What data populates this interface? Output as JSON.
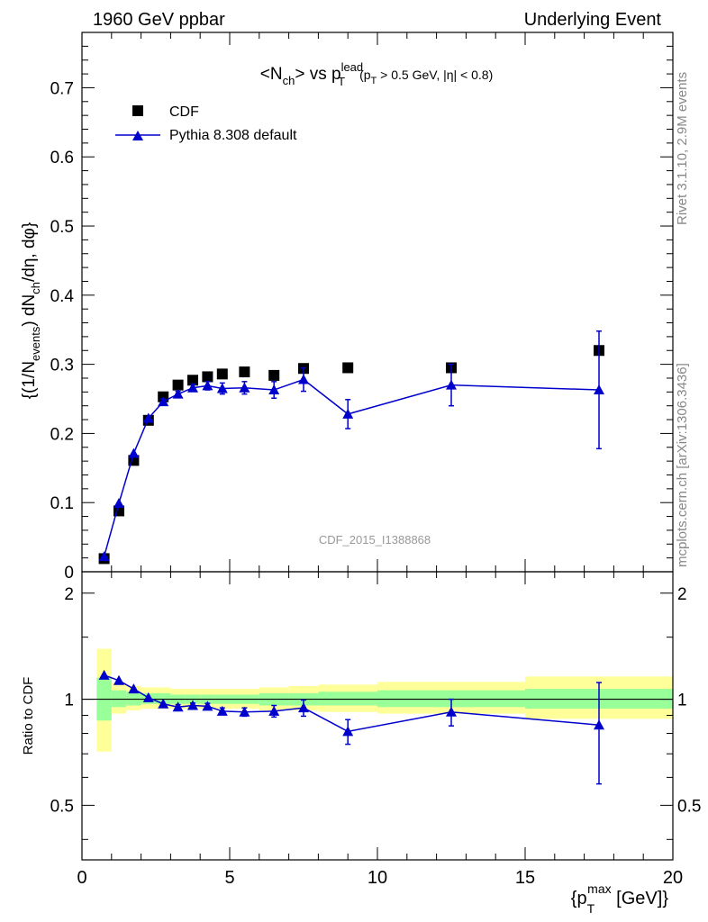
{
  "header": {
    "left": "1960 GeV ppbar",
    "right": "Underlying Event"
  },
  "side_labels": {
    "rivet": "Rivet 3.1.10,  2.9M events",
    "source": "mcplots.cern.ch [arXiv:1306.3436]"
  },
  "watermark": "CDF_2015_I1388868",
  "colors": {
    "data": "#000000",
    "mc": "#0000cc",
    "band_inner": "#99ff99",
    "band_outer": "#ffff99"
  },
  "chart_data": [
    {
      "type": "scatter",
      "title_parts": {
        "main": "<N",
        "main_sub": "ch",
        "mid": "> vs p",
        "mid_sup": "lead",
        "mid_sub": "T",
        "cond_a": "(p",
        "cond_sub": "T",
        "cond_b": " > 0.5 GeV, |η| < 0.8)"
      },
      "ylabel_parts": {
        "a": "{(1/N",
        "sub1": "events",
        "b": ") dN",
        "sub2": "ch",
        "c": "/dη, dφ}"
      },
      "xlim": [
        0,
        20
      ],
      "ylim": [
        0,
        0.78
      ],
      "yticks": [
        0,
        0.1,
        0.2,
        0.3,
        0.4,
        0.5,
        0.6,
        0.7
      ],
      "ytick_labels": [
        "0",
        "0.1",
        "0.2",
        "0.3",
        "0.4",
        "0.5",
        "0.6",
        "0.7"
      ],
      "legend_position": "top-left",
      "series": [
        {
          "name": "CDF",
          "marker": "square",
          "x": [
            0.75,
            1.25,
            1.75,
            2.25,
            2.75,
            3.25,
            3.75,
            4.25,
            4.75,
            5.5,
            6.5,
            7.5,
            9.0,
            12.5,
            17.5
          ],
          "y": [
            0.019,
            0.088,
            0.161,
            0.219,
            0.253,
            0.27,
            0.277,
            0.282,
            0.286,
            0.289,
            0.284,
            0.294,
            0.295,
            0.295,
            0.32
          ]
        },
        {
          "name": "Pythia 8.308 default",
          "marker": "triangle",
          "x": [
            0.75,
            1.25,
            1.75,
            2.25,
            2.75,
            3.25,
            3.75,
            4.25,
            4.75,
            5.5,
            6.5,
            7.5,
            9.0,
            12.5,
            17.5
          ],
          "y": [
            0.022,
            0.099,
            0.171,
            0.222,
            0.246,
            0.257,
            0.266,
            0.269,
            0.265,
            0.266,
            0.263,
            0.278,
            0.228,
            0.27,
            0.263
          ],
          "err": [
            0.001,
            0.002,
            0.003,
            0.003,
            0.004,
            0.004,
            0.005,
            0.006,
            0.008,
            0.009,
            0.012,
            0.017,
            0.021,
            0.03,
            0.085
          ]
        }
      ]
    },
    {
      "type": "scatter",
      "ylabel": "Ratio to CDF",
      "xlabel_parts": {
        "a": "{p",
        "sub": "T",
        "sup": "max",
        "b": " [GeV]}"
      },
      "xlim": [
        0,
        20
      ],
      "xticks": [
        0,
        5,
        10,
        15,
        20
      ],
      "xtick_labels": [
        "0",
        "5",
        "10",
        "15",
        "20"
      ],
      "ylim": [
        0.35,
        2.3
      ],
      "yticks": [
        0.5,
        1,
        2
      ],
      "ytick_labels": [
        "0.5",
        "1",
        "2"
      ],
      "log_scale_y": true,
      "bands": {
        "edges": [
          0.5,
          1.0,
          1.5,
          2.0,
          2.5,
          3.0,
          3.5,
          4.0,
          4.5,
          5.0,
          6.0,
          7.0,
          8.0,
          10.0,
          15.0,
          20.0
        ],
        "inner_lo": [
          0.87,
          0.95,
          0.96,
          0.97,
          0.97,
          0.97,
          0.97,
          0.97,
          0.97,
          0.97,
          0.96,
          0.96,
          0.96,
          0.95,
          0.94
        ],
        "inner_hi": [
          1.15,
          1.06,
          1.05,
          1.04,
          1.04,
          1.03,
          1.03,
          1.03,
          1.03,
          1.03,
          1.04,
          1.04,
          1.05,
          1.06,
          1.07
        ],
        "outer_lo": [
          0.71,
          0.91,
          0.93,
          0.94,
          0.94,
          0.94,
          0.94,
          0.94,
          0.94,
          0.94,
          0.93,
          0.93,
          0.92,
          0.91,
          0.88
        ],
        "outer_hi": [
          1.39,
          1.11,
          1.09,
          1.08,
          1.08,
          1.07,
          1.07,
          1.07,
          1.07,
          1.07,
          1.08,
          1.09,
          1.1,
          1.12,
          1.16
        ]
      },
      "series": [
        {
          "name": "Pythia 8.308 default",
          "x": [
            0.75,
            1.25,
            1.75,
            2.25,
            2.75,
            3.25,
            3.75,
            4.25,
            4.75,
            5.5,
            6.5,
            7.5,
            9.0,
            12.5,
            17.5
          ],
          "y": [
            1.17,
            1.13,
            1.07,
            1.01,
            0.97,
            0.95,
            0.96,
            0.955,
            0.925,
            0.92,
            0.925,
            0.945,
            0.81,
            0.92,
            0.845
          ],
          "err": [
            0.005,
            0.008,
            0.01,
            0.01,
            0.012,
            0.015,
            0.015,
            0.018,
            0.02,
            0.025,
            0.035,
            0.05,
            0.065,
            0.08,
            0.27
          ]
        }
      ]
    }
  ]
}
